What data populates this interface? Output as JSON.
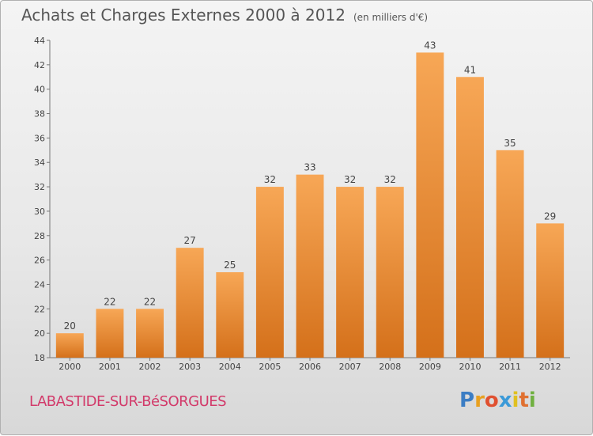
{
  "title": "Achats et Charges Externes 2000 à 2012",
  "unit": "(en milliers d'€)",
  "commune": "LABASTIDE-SUR-BéSORGUES",
  "logo": {
    "letters": [
      "P",
      "r",
      "o",
      "x",
      "i",
      "t",
      "i"
    ],
    "colors": [
      "#3b7dc4",
      "#e8a020",
      "#e05030",
      "#3b9ad8",
      "#e0c020",
      "#e07030",
      "#70b040"
    ]
  },
  "chart_data": {
    "type": "bar",
    "categories": [
      "2000",
      "2001",
      "2002",
      "2003",
      "2004",
      "2005",
      "2006",
      "2007",
      "2008",
      "2009",
      "2010",
      "2011",
      "2012"
    ],
    "values": [
      20,
      22,
      22,
      27,
      25,
      32,
      33,
      32,
      32,
      43,
      41,
      35,
      29
    ],
    "ylim": [
      18,
      44
    ],
    "yticks": [
      18,
      20,
      22,
      24,
      26,
      28,
      30,
      32,
      34,
      36,
      38,
      40,
      42,
      44
    ],
    "bar_color": "#f0903a",
    "grid": false
  }
}
